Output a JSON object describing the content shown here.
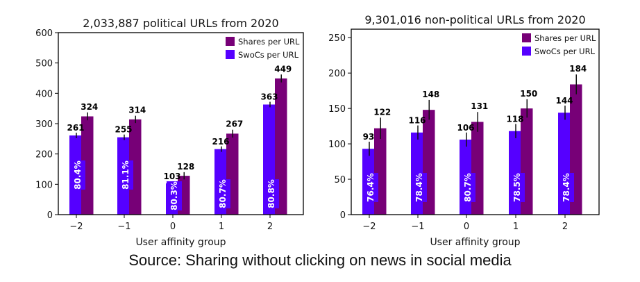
{
  "colors": {
    "shares": "#770077",
    "swocs": "#5500ff"
  },
  "caption": "Source: Sharing without clicking on news in social media",
  "chart_data": [
    {
      "type": "bar",
      "title": "2,033,887 political URLs from 2020",
      "xlabel": "User affinity group",
      "ylabel": "",
      "categories": [
        "−2",
        "−1",
        "0",
        "1",
        "2"
      ],
      "ylim": [
        0,
        600
      ],
      "yticks": [
        0,
        100,
        200,
        300,
        400,
        500,
        600
      ],
      "legend": {
        "placement": "top-right",
        "entries": [
          "Shares per URL",
          "SwoCs per URL"
        ]
      },
      "series": [
        {
          "name": "SwoCs per URL",
          "values": [
            261,
            255,
            103,
            216,
            363
          ],
          "error": [
            9,
            9,
            7,
            9,
            9
          ]
        },
        {
          "name": "Shares per URL",
          "values": [
            324,
            314,
            128,
            267,
            449
          ],
          "error": [
            13,
            12,
            12,
            13,
            13
          ]
        }
      ],
      "percent_labels": [
        "80.4%",
        "81.1%",
        "80.3%",
        "80.7%",
        "80.8%"
      ]
    },
    {
      "type": "bar",
      "title": "9,301,016 non-political URLs from 2020",
      "xlabel": "User affinity group",
      "ylabel": "",
      "categories": [
        "−2",
        "−1",
        "0",
        "1",
        "2"
      ],
      "ylim": [
        0,
        262
      ],
      "yticks": [
        0,
        50,
        100,
        150,
        200,
        250
      ],
      "legend": {
        "placement": "top-right",
        "entries": [
          "Shares per URL",
          "SwoCs per URL"
        ]
      },
      "series": [
        {
          "name": "SwoCs per URL",
          "values": [
            93,
            116,
            106,
            118,
            144
          ],
          "error": [
            10,
            10,
            10,
            10,
            10
          ]
        },
        {
          "name": "Shares per URL",
          "values": [
            122,
            148,
            131,
            150,
            184
          ],
          "error": [
            15,
            14,
            14,
            13,
            14
          ]
        }
      ],
      "percent_labels": [
        "76.4%",
        "78.4%",
        "80.7%",
        "78.5%",
        "78.4%"
      ]
    }
  ]
}
